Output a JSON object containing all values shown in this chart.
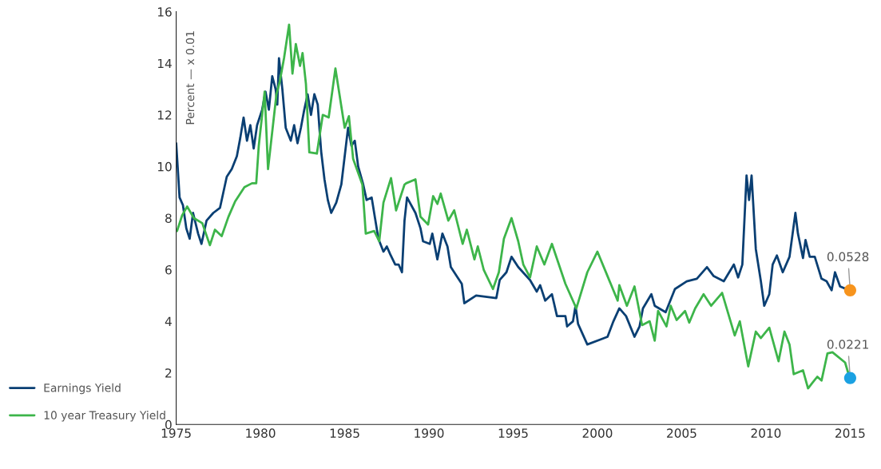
{
  "chart_data": {
    "type": "line",
    "ylabel": "Percent — x 0.01",
    "xlim": [
      1975,
      2015
    ],
    "xticks": [
      1975,
      1980,
      1985,
      1990,
      1995,
      2000,
      2005,
      2010,
      2015
    ],
    "ylim": [
      0,
      16
    ],
    "yticks": [
      0,
      2,
      4,
      6,
      8,
      10,
      12,
      14,
      16
    ],
    "grid": false,
    "legend": "left",
    "marker": "none",
    "line_style": "solid",
    "series": [
      {
        "name": "Earnings Yield",
        "color": "#0a3f73",
        "x": [
          1975.0,
          1975.2,
          1975.4,
          1975.6,
          1975.8,
          1976.0,
          1976.3,
          1976.5,
          1976.8,
          1977.2,
          1977.6,
          1978.0,
          1978.3,
          1978.6,
          1978.8,
          1979.0,
          1979.2,
          1979.4,
          1979.6,
          1979.8,
          1980.1,
          1980.3,
          1980.5,
          1980.7,
          1980.9,
          1981.0,
          1981.1,
          1981.3,
          1981.5,
          1981.8,
          1982.0,
          1982.2,
          1982.4,
          1982.6,
          1982.8,
          1983.0,
          1983.2,
          1983.4,
          1983.6,
          1983.8,
          1984.0,
          1984.2,
          1984.5,
          1984.8,
          1985.0,
          1985.2,
          1985.4,
          1985.6,
          1985.8,
          1986.1,
          1986.3,
          1986.6,
          1986.8,
          1987.0,
          1987.3,
          1987.5,
          1987.7,
          1988.0,
          1988.2,
          1988.4,
          1988.55,
          1988.7,
          1989.2,
          1989.5,
          1989.65,
          1990.05,
          1990.2,
          1990.5,
          1990.8,
          1991.1,
          1991.3,
          1991.7,
          1991.95,
          1992.1,
          1992.8,
          1994.0,
          1994.2,
          1994.6,
          1994.9,
          1995.3,
          1996.0,
          1996.4,
          1996.6,
          1996.9,
          1997.3,
          1997.6,
          1998.1,
          1998.2,
          1998.55,
          1998.7,
          1998.85,
          1999.4,
          2000.2,
          2000.6,
          2000.95,
          2001.3,
          2001.7,
          2002.2,
          2002.5,
          2002.7,
          2003.2,
          2003.4,
          2004.05,
          2004.6,
          2005.3,
          2005.9,
          2006.5,
          2006.9,
          2007.5,
          2008.1,
          2008.35,
          2008.6,
          2008.85,
          2009.0,
          2009.15,
          2009.4,
          2009.7,
          2009.9,
          2010.2,
          2010.4,
          2010.65,
          2011.0,
          2011.4,
          2011.75,
          2011.9,
          2012.2,
          2012.35,
          2012.6,
          2012.9,
          2013.3,
          2013.6,
          2013.9,
          2014.1,
          2014.4,
          2014.95
        ],
        "values": [
          10.9,
          8.8,
          8.5,
          7.6,
          7.2,
          8.2,
          7.4,
          7.0,
          7.9,
          8.2,
          8.4,
          9.6,
          9.9,
          10.4,
          11.1,
          11.9,
          11.0,
          11.6,
          10.7,
          11.6,
          12.2,
          12.9,
          12.2,
          13.5,
          13.0,
          12.4,
          14.2,
          13.0,
          11.5,
          11.0,
          11.6,
          10.9,
          11.5,
          12.2,
          12.8,
          12.0,
          12.8,
          12.4,
          10.6,
          9.5,
          8.7,
          8.2,
          8.6,
          9.3,
          10.4,
          11.5,
          10.8,
          11.0,
          10.0,
          9.3,
          8.7,
          8.8,
          8.0,
          7.2,
          6.7,
          6.9,
          6.6,
          6.2,
          6.2,
          5.9,
          7.9,
          8.8,
          8.2,
          7.6,
          7.1,
          7.0,
          7.4,
          6.4,
          7.4,
          6.9,
          6.1,
          5.7,
          5.45,
          4.7,
          5.0,
          4.9,
          5.6,
          5.9,
          6.5,
          6.1,
          5.6,
          5.15,
          5.4,
          4.8,
          5.05,
          4.2,
          4.2,
          3.8,
          4.0,
          4.6,
          3.9,
          3.1,
          3.3,
          3.4,
          4.0,
          4.5,
          4.2,
          3.4,
          3.8,
          4.5,
          5.05,
          4.6,
          4.35,
          5.25,
          5.55,
          5.65,
          6.1,
          5.75,
          5.55,
          6.2,
          5.7,
          6.2,
          9.65,
          8.7,
          9.65,
          6.8,
          5.55,
          4.6,
          5.05,
          6.2,
          6.55,
          5.9,
          6.5,
          8.2,
          7.4,
          6.45,
          7.15,
          6.5,
          6.5,
          5.65,
          5.55,
          5.2,
          5.9,
          5.35,
          5.2
        ]
      },
      {
        "name": "10 year Treasury Yield",
        "color": "#3db54a",
        "x": [
          1975.05,
          1975.35,
          1975.65,
          1976.05,
          1976.55,
          1977.0,
          1977.3,
          1977.7,
          1978.1,
          1978.5,
          1979.05,
          1979.5,
          1979.75,
          1979.9,
          1980.25,
          1980.45,
          1980.95,
          1981.15,
          1981.4,
          1981.7,
          1981.9,
          1982.1,
          1982.35,
          1982.5,
          1982.7,
          1982.9,
          1983.35,
          1983.7,
          1984.05,
          1984.45,
          1985.0,
          1985.25,
          1985.5,
          1986.05,
          1986.25,
          1986.75,
          1987.05,
          1987.3,
          1987.75,
          1988.05,
          1988.55,
          1988.65,
          1989.2,
          1989.5,
          1989.95,
          1990.25,
          1990.5,
          1990.7,
          1991.15,
          1991.5,
          1992.0,
          1992.25,
          1992.7,
          1992.9,
          1993.25,
          1993.8,
          1994.15,
          1994.45,
          1994.9,
          1995.3,
          1995.6,
          1996.0,
          1996.4,
          1996.85,
          1997.3,
          1998.1,
          1998.75,
          1999.4,
          2000.0,
          2000.6,
          2001.2,
          2001.3,
          2001.75,
          2002.2,
          2002.65,
          2003.1,
          2003.4,
          2003.6,
          2004.1,
          2004.35,
          2004.7,
          2005.2,
          2005.45,
          2005.8,
          2006.3,
          2006.75,
          2007.4,
          2008.15,
          2008.45,
          2008.95,
          2009.4,
          2009.7,
          2010.2,
          2010.75,
          2011.1,
          2011.4,
          2011.65,
          2012.2,
          2012.5,
          2013.05,
          2013.3,
          2013.65,
          2013.95,
          2014.7,
          2014.95
        ],
        "values": [
          7.5,
          8.1,
          8.45,
          8.0,
          7.8,
          6.95,
          7.55,
          7.3,
          8.05,
          8.65,
          9.2,
          9.35,
          9.35,
          10.8,
          12.9,
          9.9,
          12.8,
          13.3,
          14.2,
          15.5,
          13.6,
          14.75,
          13.9,
          14.4,
          13.2,
          10.55,
          10.5,
          12.0,
          11.9,
          13.8,
          11.5,
          11.95,
          10.3,
          9.3,
          7.4,
          7.5,
          7.1,
          8.6,
          9.55,
          8.3,
          9.3,
          9.35,
          9.5,
          8.05,
          7.75,
          8.85,
          8.55,
          8.95,
          7.9,
          8.3,
          7.0,
          7.55,
          6.4,
          6.9,
          6.0,
          5.25,
          5.9,
          7.2,
          8.0,
          7.1,
          6.2,
          5.7,
          6.9,
          6.2,
          7.0,
          5.45,
          4.5,
          5.9,
          6.7,
          5.75,
          4.8,
          5.4,
          4.6,
          5.35,
          3.85,
          4.0,
          3.25,
          4.4,
          3.8,
          4.6,
          4.05,
          4.4,
          3.95,
          4.5,
          5.05,
          4.6,
          5.1,
          3.45,
          4.0,
          2.25,
          3.6,
          3.35,
          3.75,
          2.45,
          3.6,
          3.1,
          1.95,
          2.1,
          1.4,
          1.85,
          1.7,
          2.75,
          2.8,
          2.4,
          1.85
        ]
      },
      {
        "type": "scatter",
        "marker": "circle",
        "color": "#f7941d",
        "x": [
          2015
        ],
        "values": [
          5.2
        ]
      },
      {
        "type": "scatter",
        "marker": "circle",
        "color": "#1ba1e2",
        "x": [
          2015
        ],
        "values": [
          1.8
        ]
      }
    ],
    "annotations": [
      {
        "text": "0.0528",
        "x": 2015,
        "y": 5.2
      },
      {
        "text": "0.0221",
        "x": 2015,
        "y": 1.8
      }
    ]
  }
}
